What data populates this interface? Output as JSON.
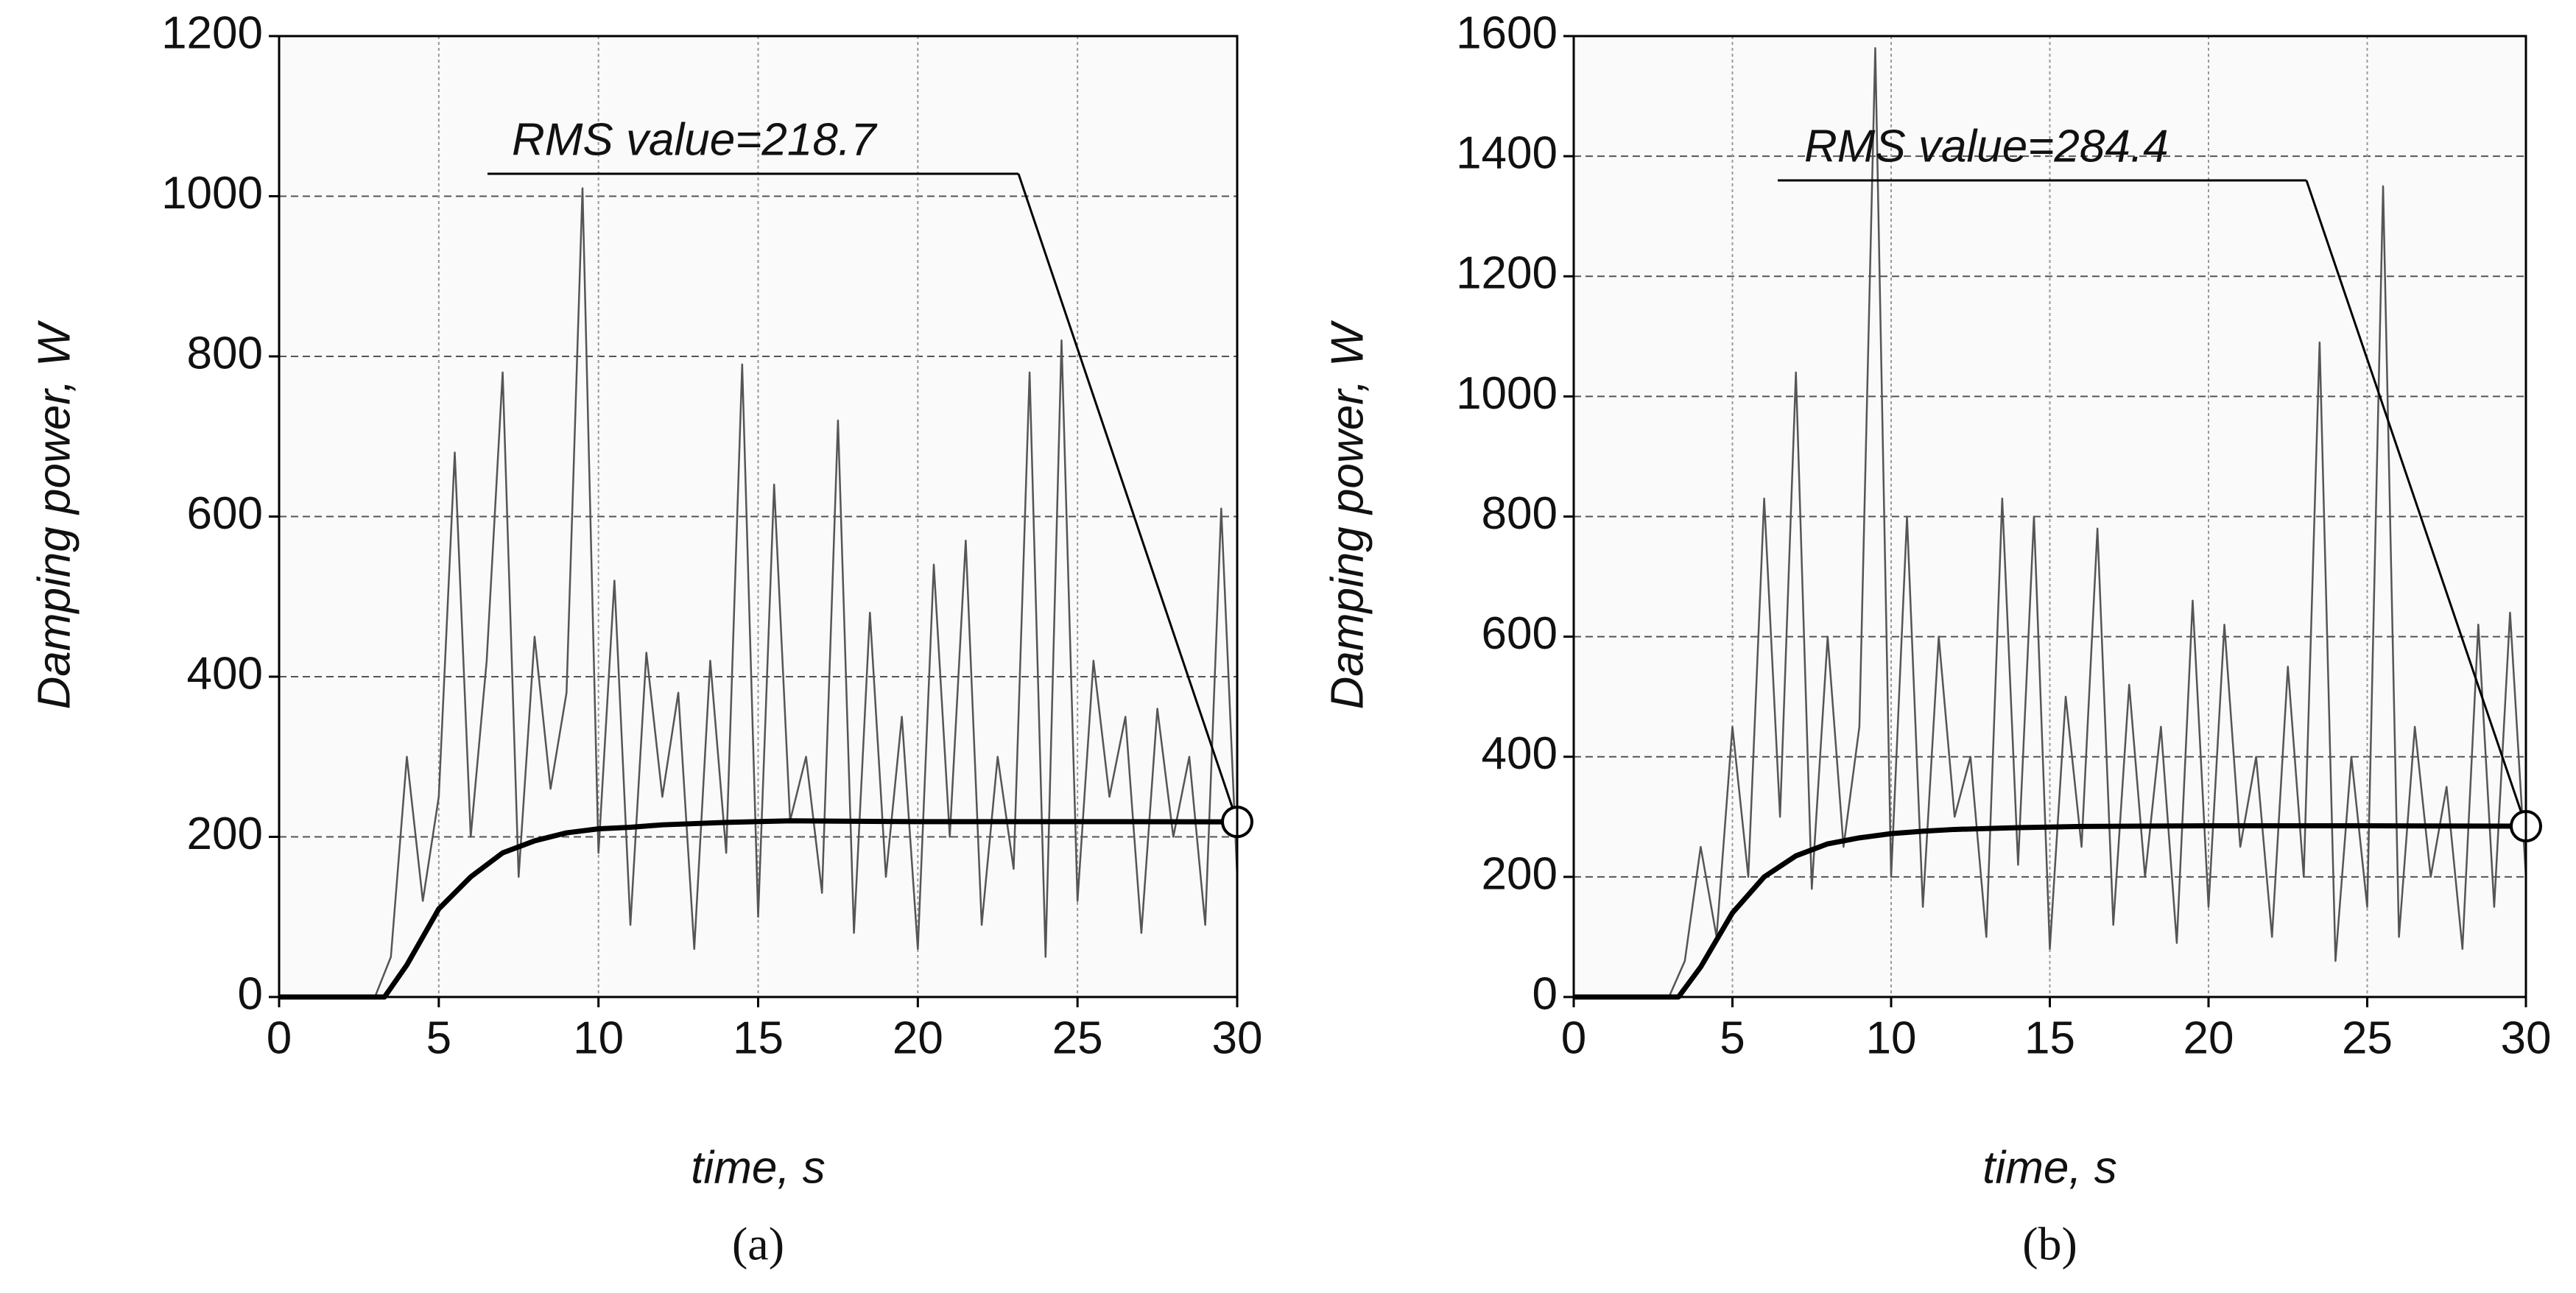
{
  "chart_data": [
    {
      "type": "line",
      "panel_label": "(a)",
      "xlabel": "time, s",
      "ylabel": "Damping power, W",
      "annotation": "RMS value=218.7",
      "xlim": [
        0,
        30
      ],
      "xticks": [
        0,
        5,
        10,
        15,
        20,
        25,
        30
      ],
      "ylim": [
        0,
        1200
      ],
      "yticks": [
        0,
        200,
        400,
        600,
        800,
        1000,
        1200
      ],
      "grid": true,
      "series": [
        {
          "color": "#555555",
          "x": [
            0,
            0.5,
            1,
            1.5,
            2,
            2.5,
            3,
            3.5,
            4,
            4.5,
            5,
            5.5,
            6,
            6.5,
            7,
            7.5,
            8,
            8.5,
            9,
            9.5,
            10,
            10.5,
            11,
            11.5,
            12,
            12.5,
            13,
            13.5,
            14,
            14.5,
            15,
            15.5,
            16,
            16.5,
            17,
            17.5,
            18,
            18.5,
            19,
            19.5,
            20,
            20.5,
            21,
            21.5,
            22,
            22.5,
            23,
            23.5,
            24,
            24.5,
            25,
            25.5,
            26,
            26.5,
            27,
            27.5,
            28,
            28.5,
            29,
            29.5,
            30
          ],
          "values": [
            0,
            0,
            0,
            0,
            0,
            0,
            0,
            50,
            300,
            120,
            250,
            680,
            200,
            420,
            780,
            150,
            450,
            260,
            380,
            1010,
            180,
            520,
            90,
            430,
            250,
            380,
            60,
            420,
            180,
            790,
            100,
            640,
            220,
            300,
            130,
            720,
            80,
            480,
            150,
            350,
            60,
            540,
            200,
            570,
            90,
            300,
            160,
            780,
            50,
            820,
            120,
            420,
            250,
            350,
            80,
            360,
            200,
            300,
            90,
            610,
            150
          ]
        },
        {
          "color": "#000000",
          "x": [
            0,
            3.3,
            4,
            5,
            6,
            7,
            8,
            9,
            10,
            11,
            12,
            14,
            16,
            20,
            25,
            30
          ],
          "values": [
            0,
            0,
            40,
            110,
            150,
            180,
            195,
            205,
            210,
            212,
            215,
            218,
            220,
            219,
            219,
            218.7
          ]
        }
      ]
    },
    {
      "type": "line",
      "panel_label": "(b)",
      "xlabel": "time, s",
      "ylabel": "Damping power, W",
      "annotation": "RMS value=284.4",
      "xlim": [
        0,
        30
      ],
      "xticks": [
        0,
        5,
        10,
        15,
        20,
        25,
        30
      ],
      "ylim": [
        0,
        1600
      ],
      "yticks": [
        0,
        200,
        400,
        600,
        800,
        1000,
        1200,
        1400,
        1600
      ],
      "grid": true,
      "series": [
        {
          "color": "#555555",
          "x": [
            0,
            0.5,
            1,
            1.5,
            2,
            2.5,
            3,
            3.5,
            4,
            4.5,
            5,
            5.5,
            6,
            6.5,
            7,
            7.5,
            8,
            8.5,
            9,
            9.5,
            10,
            10.5,
            11,
            11.5,
            12,
            12.5,
            13,
            13.5,
            14,
            14.5,
            15,
            15.5,
            16,
            16.5,
            17,
            17.5,
            18,
            18.5,
            19,
            19.5,
            20,
            20.5,
            21,
            21.5,
            22,
            22.5,
            23,
            23.5,
            24,
            24.5,
            25,
            25.5,
            26,
            26.5,
            27,
            27.5,
            28,
            28.5,
            29,
            29.5,
            30
          ],
          "values": [
            0,
            0,
            0,
            0,
            0,
            0,
            0,
            60,
            250,
            100,
            450,
            200,
            830,
            300,
            1040,
            180,
            600,
            250,
            450,
            1580,
            200,
            800,
            150,
            600,
            300,
            400,
            100,
            830,
            220,
            800,
            80,
            500,
            250,
            780,
            120,
            520,
            200,
            450,
            90,
            660,
            150,
            620,
            250,
            400,
            100,
            550,
            200,
            1090,
            60,
            400,
            150,
            1350,
            100,
            450,
            200,
            350,
            80,
            620,
            150,
            640,
            200
          ]
        },
        {
          "color": "#000000",
          "x": [
            0,
            3.3,
            4,
            5,
            6,
            7,
            8,
            9,
            10,
            11,
            12,
            14,
            16,
            20,
            25,
            30
          ],
          "values": [
            0,
            0,
            50,
            140,
            200,
            235,
            255,
            265,
            272,
            276,
            279,
            282,
            284,
            285,
            285,
            284.4
          ]
        }
      ]
    }
  ]
}
